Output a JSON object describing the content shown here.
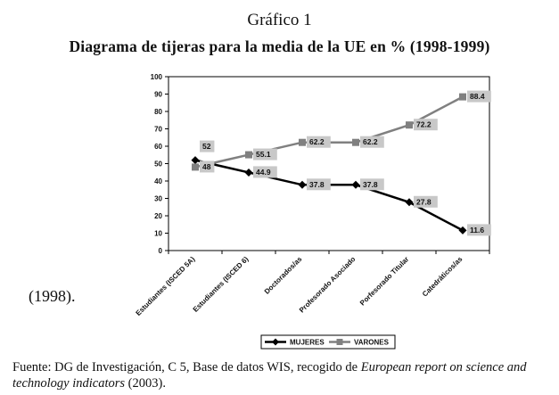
{
  "supertitle": "Gráfico 1",
  "side_reference": "(1998).",
  "footnote": {
    "prefix": "Fuente: DG de Investigación, C 5, Base de datos WIS, recogido de ",
    "italic": "European report on science and technology indicators",
    "suffix": " (2003)."
  },
  "colors": {
    "mujeres": "#000000",
    "varones": "#808080",
    "label_bg": "#c8c8c8"
  },
  "chart_data": {
    "type": "line",
    "title": "Diagrama de tijeras para la media de la UE en % (1998-1999)",
    "xlabel": "",
    "ylabel": "",
    "ylim": [
      0,
      100
    ],
    "yticks": [
      0,
      10,
      20,
      30,
      40,
      50,
      60,
      70,
      80,
      90,
      100
    ],
    "grid": false,
    "legend_position": "bottom",
    "categories": [
      "Estudiantes (ISCED 5A)",
      "Estudiantes (ISCED 6)",
      "Doctorados/as",
      "Profesorado Asociado",
      "Porfesorado Titular",
      "Catedráticos/as"
    ],
    "series": [
      {
        "name": "MUJERES",
        "values": [
          52,
          44.9,
          37.8,
          37.8,
          27.8,
          11.6
        ],
        "marker": "diamond"
      },
      {
        "name": "VARONES",
        "values": [
          48,
          55.1,
          62.2,
          62.2,
          72.2,
          88.4
        ],
        "marker": "square"
      }
    ]
  }
}
